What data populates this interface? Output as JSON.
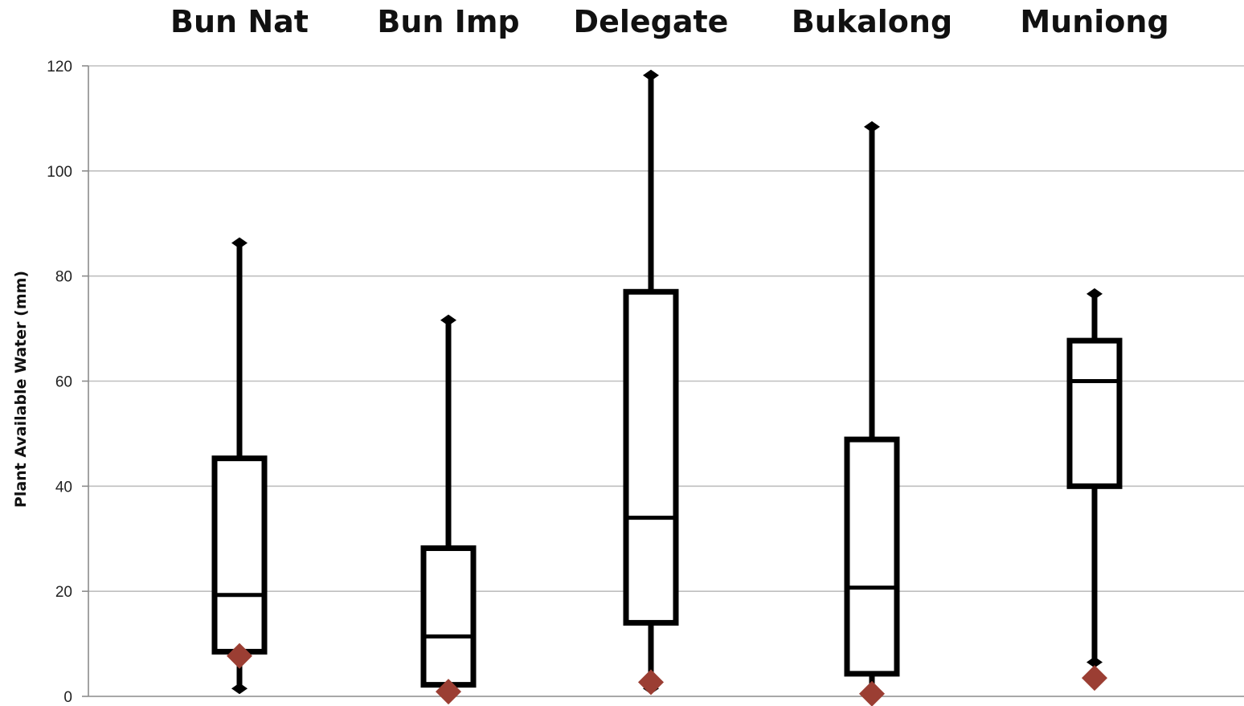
{
  "chart_data": {
    "type": "boxplot",
    "categories": [
      "Bun Nat",
      "Bun Imp",
      "Delegate",
      "Bukalong",
      "Muniong"
    ],
    "boxes": [
      {
        "category": "Bun Nat",
        "min": 1.5,
        "q1": 8.5,
        "median": 19.3,
        "q3": 45.3,
        "max": 86.3,
        "marker": 7.7
      },
      {
        "category": "Bun Imp",
        "min": 0.5,
        "q1": 2.2,
        "median": 11.4,
        "q3": 28.2,
        "max": 71.6,
        "marker": 0.9
      },
      {
        "category": "Delegate",
        "min": 1.5,
        "q1": 14.0,
        "median": 34.0,
        "q3": 77.0,
        "max": 118.2,
        "marker": 2.7
      },
      {
        "category": "Bukalong",
        "min": 0.8,
        "q1": 4.3,
        "median": 20.7,
        "q3": 48.9,
        "max": 108.4,
        "marker": 0.5
      },
      {
        "category": "Muniong",
        "min": 6.5,
        "q1": 40.0,
        "median": 60.0,
        "q3": 67.7,
        "max": 76.6,
        "marker": 3.5
      }
    ],
    "yticks": [
      "0",
      "20",
      "40",
      "60",
      "80",
      "100",
      "120"
    ],
    "ylabel": "Plant Available Water (mm)",
    "xlabel": "",
    "ylim": [
      0,
      120
    ],
    "grid": true,
    "legend": "none",
    "colors": {
      "box_stroke": "#000000",
      "box_fill": "#ffffff",
      "marker": "#9b3e33",
      "grid": "#bfbfbf",
      "axis": "#8c8c8c"
    }
  }
}
